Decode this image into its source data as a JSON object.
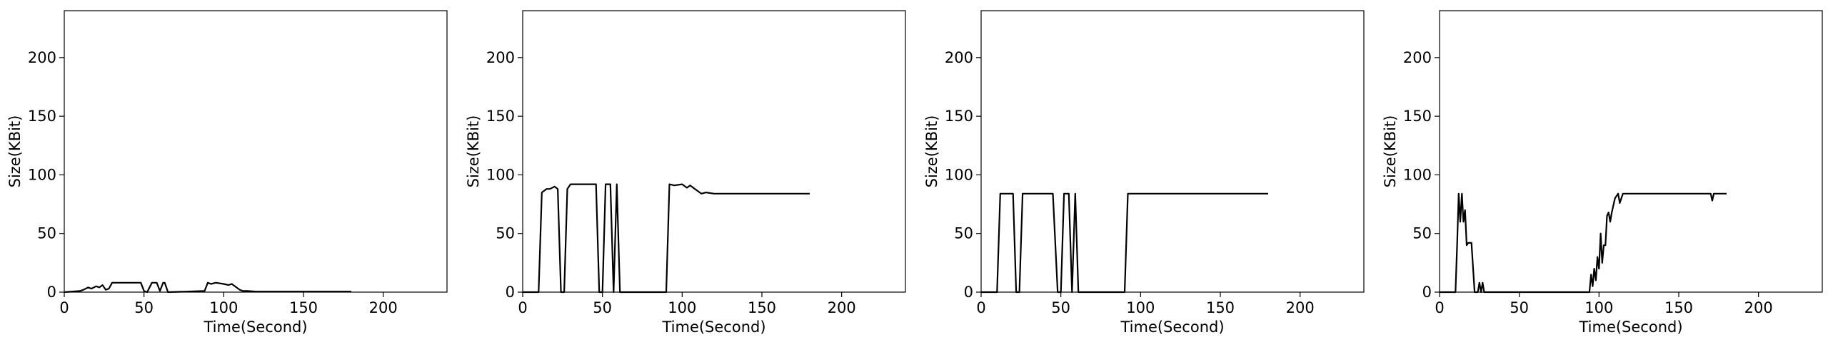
{
  "chart_data": [
    {
      "type": "line",
      "xlabel": "Time(Second)",
      "ylabel": "Size(KBit)",
      "xlim": [
        0,
        240
      ],
      "ylim": [
        0,
        240
      ],
      "xticks": [
        0,
        50,
        100,
        150,
        200
      ],
      "yticks": [
        0,
        50,
        100,
        150,
        200
      ],
      "grid": false,
      "series": [
        {
          "x": [
            0,
            10,
            12,
            15,
            17,
            20,
            22,
            24,
            26,
            28,
            30,
            40,
            48,
            50,
            52,
            55,
            58,
            60,
            62,
            63,
            65,
            88,
            90,
            92,
            95,
            100,
            103,
            105,
            108,
            110,
            112,
            115,
            120,
            140,
            160,
            175,
            180
          ],
          "y": [
            0,
            1,
            2,
            4,
            3,
            5,
            4,
            6,
            2,
            3,
            8,
            8,
            8,
            1,
            0,
            8,
            8,
            1,
            8,
            8,
            0,
            1,
            8,
            7,
            8,
            7,
            6,
            7,
            4,
            2,
            1,
            1,
            0.5,
            0.5,
            0.5,
            0.5,
            0.5
          ]
        }
      ]
    },
    {
      "type": "line",
      "xlabel": "Time(Second)",
      "ylabel": "Size(KBit)",
      "xlim": [
        0,
        240
      ],
      "ylim": [
        0,
        240
      ],
      "xticks": [
        0,
        50,
        100,
        150,
        200
      ],
      "yticks": [
        0,
        50,
        100,
        150,
        200
      ],
      "grid": false,
      "series": [
        {
          "x": [
            0,
            10,
            12,
            15,
            17,
            20,
            22,
            24,
            26,
            28,
            30,
            40,
            46,
            48,
            50,
            52,
            55,
            57,
            59,
            61,
            63,
            65,
            90,
            92,
            95,
            100,
            103,
            105,
            108,
            110,
            112,
            115,
            120,
            140,
            160,
            180
          ],
          "y": [
            0,
            0,
            85,
            88,
            88,
            90,
            88,
            0,
            0,
            88,
            92,
            92,
            92,
            0,
            0,
            92,
            92,
            0,
            92,
            0,
            0,
            0,
            0,
            92,
            91,
            92,
            89,
            91,
            88,
            86,
            84,
            85,
            84,
            84,
            84,
            84
          ]
        }
      ]
    },
    {
      "type": "line",
      "xlabel": "Time(Second)",
      "ylabel": "Size(KBit)",
      "xlim": [
        0,
        240
      ],
      "ylim": [
        0,
        240
      ],
      "xticks": [
        0,
        50,
        100,
        150,
        200
      ],
      "yticks": [
        0,
        50,
        100,
        150,
        200
      ],
      "grid": false,
      "series": [
        {
          "x": [
            0,
            10,
            12,
            15,
            20,
            22,
            24,
            26,
            28,
            35,
            45,
            48,
            50,
            52,
            55,
            57,
            59,
            61,
            63,
            65,
            90,
            92,
            95,
            100,
            120,
            140,
            160,
            180
          ],
          "y": [
            0,
            0,
            84,
            84,
            84,
            0,
            0,
            84,
            84,
            84,
            84,
            0,
            0,
            84,
            84,
            0,
            84,
            0,
            0,
            0,
            0,
            84,
            84,
            84,
            84,
            84,
            84,
            84
          ]
        }
      ]
    },
    {
      "type": "line",
      "xlabel": "Time(Second)",
      "ylabel": "Size(KBit)",
      "xlim": [
        0,
        240
      ],
      "ylim": [
        0,
        240
      ],
      "xticks": [
        0,
        50,
        100,
        150,
        200
      ],
      "yticks": [
        0,
        50,
        100,
        150,
        200
      ],
      "grid": false,
      "series": [
        {
          "x": [
            0,
            10,
            11,
            12,
            13,
            14,
            15,
            16,
            17,
            18,
            20,
            22,
            24,
            25,
            26,
            27,
            28,
            30,
            50,
            90,
            94,
            95,
            96,
            97,
            98,
            99,
            100,
            101,
            102,
            103,
            104,
            105,
            106,
            107,
            108,
            110,
            112,
            113,
            115,
            120,
            140,
            160,
            170,
            171,
            172,
            175,
            180
          ],
          "y": [
            0,
            0,
            40,
            84,
            60,
            84,
            60,
            70,
            40,
            42,
            42,
            0,
            0,
            8,
            0,
            8,
            0,
            0,
            0,
            0,
            0,
            15,
            5,
            20,
            10,
            30,
            20,
            50,
            25,
            40,
            40,
            65,
            68,
            60,
            68,
            80,
            84,
            76,
            84,
            84,
            84,
            84,
            84,
            78,
            84,
            84,
            84
          ]
        }
      ]
    }
  ]
}
